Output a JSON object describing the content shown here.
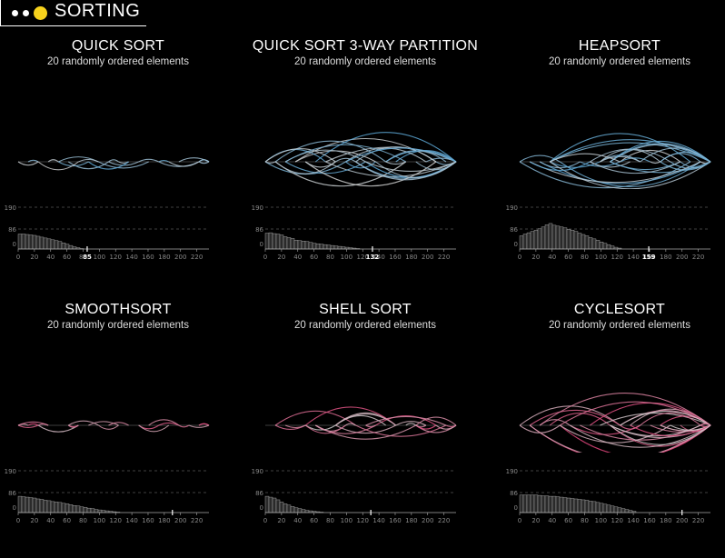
{
  "header": {
    "title": "SORTING"
  },
  "panels": [
    {
      "title": "QUICK SORT",
      "subtitle": "20 randomly ordered elements",
      "palette": "blue",
      "count": "85",
      "count_value": 85,
      "hist": [
        68,
        68,
        66,
        64,
        62,
        58,
        54,
        50,
        46,
        42,
        38,
        34,
        28,
        22,
        16,
        10,
        6,
        2
      ],
      "arc_max_steps": 5
    },
    {
      "title": "QUICK SORT 3-WAY PARTITION",
      "subtitle": "20 randomly ordered elements",
      "palette": "blue",
      "count": "132",
      "count_value": 132,
      "hist": [
        72,
        74,
        70,
        68,
        64,
        56,
        52,
        48,
        40,
        38,
        36,
        34,
        30,
        26,
        24,
        22,
        20,
        18,
        16,
        14,
        12,
        10,
        8,
        6,
        4,
        2
      ],
      "arc_max_steps": 18
    },
    {
      "title": "HEAPSORT",
      "subtitle": "20 randomly ordered elements",
      "palette": "blue",
      "count": "159",
      "count_value": 159,
      "hist": [
        60,
        68,
        74,
        80,
        86,
        92,
        100,
        110,
        116,
        108,
        104,
        100,
        96,
        90,
        86,
        80,
        72,
        66,
        60,
        52,
        46,
        40,
        32,
        26,
        20,
        14,
        8,
        4
      ],
      "arc_max_steps": 19
    },
    {
      "title": "SMOOTHSORT",
      "subtitle": "20 randomly ordered elements",
      "palette": "pink",
      "count": "",
      "count_value": 190,
      "hist": [
        74,
        72,
        70,
        68,
        66,
        62,
        60,
        56,
        54,
        50,
        48,
        46,
        42,
        40,
        36,
        32,
        30,
        26,
        24,
        20,
        18,
        14,
        12,
        10,
        8,
        6,
        4,
        2
      ],
      "arc_max_steps": 4
    },
    {
      "title": "SHELL SORT",
      "subtitle": "20 randomly ordered elements",
      "palette": "pink",
      "count": "",
      "count_value": 130,
      "hist": [
        74,
        70,
        66,
        58,
        48,
        40,
        34,
        28,
        22,
        18,
        14,
        10,
        8,
        6,
        4,
        2
      ],
      "arc_max_steps": 10
    },
    {
      "title": "CYCLESORT",
      "subtitle": "20 randomly ordered elements",
      "palette": "pink",
      "count": "",
      "count_value": 200,
      "hist": [
        80,
        80,
        80,
        80,
        80,
        78,
        76,
        76,
        74,
        74,
        72,
        70,
        68,
        66,
        64,
        62,
        60,
        58,
        56,
        52,
        50,
        46,
        42,
        38,
        34,
        30,
        26,
        22,
        18,
        14,
        10,
        6
      ],
      "arc_max_steps": 19
    }
  ],
  "axis": {
    "y_ticks": [
      "190",
      "86",
      "0"
    ],
    "x_ticks": [
      "0",
      "20",
      "40",
      "60",
      "80",
      "100",
      "120",
      "140",
      "160",
      "180",
      "200",
      "220"
    ]
  },
  "colors": {
    "blue": "#5ba7d6",
    "pink": "#e0457b",
    "neutral": "#cfcfcf",
    "accent": "#f7d21c"
  }
}
